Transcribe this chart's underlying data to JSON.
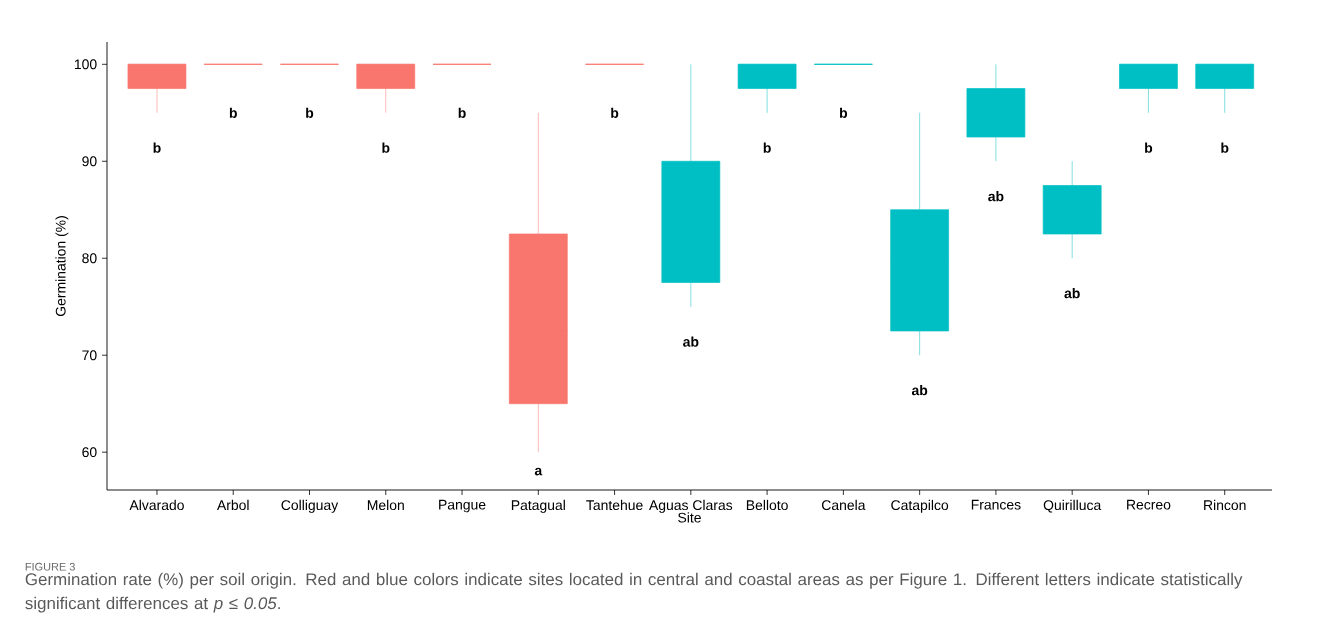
{
  "chart_data": {
    "type": "box",
    "xlabel": "Site",
    "ylabel": "Germination (%)",
    "categories": [
      "Alvarado",
      "Arbol",
      "Colliguay",
      "Melon",
      "Pangue",
      "Patagual",
      "Tantehue",
      "Aguas Claras",
      "Belloto",
      "Canela",
      "Catapilco",
      "Frances",
      "Quirilluca",
      "Recreo",
      "Rincon"
    ],
    "colors": [
      "#f8766d",
      "#f8766d",
      "#f8766d",
      "#f8766d",
      "#f8766d",
      "#f8766d",
      "#f8766d",
      "#00bfc4",
      "#00bfc4",
      "#00bfc4",
      "#00bfc4",
      "#00bfc4",
      "#00bfc4",
      "#00bfc4",
      "#00bfc4"
    ],
    "boxes": [
      {
        "low": 95,
        "q1": 97.5,
        "median": 100,
        "q3": 100,
        "high": 100
      },
      {
        "low": 100,
        "q1": 100,
        "median": 100,
        "q3": 100,
        "high": 100
      },
      {
        "low": 100,
        "q1": 100,
        "median": 100,
        "q3": 100,
        "high": 100
      },
      {
        "low": 95,
        "q1": 97.5,
        "median": 100,
        "q3": 100,
        "high": 100
      },
      {
        "low": 100,
        "q1": 100,
        "median": 100,
        "q3": 100,
        "high": 100
      },
      {
        "low": 60,
        "q1": 65,
        "median": 72.5,
        "q3": 82.5,
        "high": 95
      },
      {
        "low": 100,
        "q1": 100,
        "median": 100,
        "q3": 100,
        "high": 100
      },
      {
        "low": 75,
        "q1": 77.5,
        "median": 82.5,
        "q3": 90,
        "high": 100
      },
      {
        "low": 95,
        "q1": 97.5,
        "median": 100,
        "q3": 100,
        "high": 100
      },
      {
        "low": 100,
        "q1": 100,
        "median": 100,
        "q3": 100,
        "high": 100
      },
      {
        "low": 70,
        "q1": 72.5,
        "median": 80,
        "q3": 85,
        "high": 95
      },
      {
        "low": 90,
        "q1": 92.5,
        "median": 95,
        "q3": 97.5,
        "high": 100
      },
      {
        "low": 80,
        "q1": 82.5,
        "median": 85,
        "q3": 87.5,
        "high": 90
      },
      {
        "low": 95,
        "q1": 97.5,
        "median": 100,
        "q3": 100,
        "high": 100
      },
      {
        "low": 95,
        "q1": 97.5,
        "median": 100,
        "q3": 100,
        "high": 100
      }
    ],
    "ylim": [
      56.1,
      102.3
    ],
    "yticks": [
      60,
      70,
      80,
      90,
      100
    ],
    "grid": false,
    "annotations": [
      "b",
      "b",
      "b",
      "b",
      "b",
      "a",
      "b",
      "ab",
      "b",
      "b",
      "ab",
      "ab",
      "ab",
      "b",
      "b",
      "FIGURE 3",
      "Germination rate (%) per soil origin. Red and blue colors indicate sites located in central and coastal areas as per Figure 1. Different letters indicate statistically significant differences at *p ≤ 0.05*."
    ]
  }
}
